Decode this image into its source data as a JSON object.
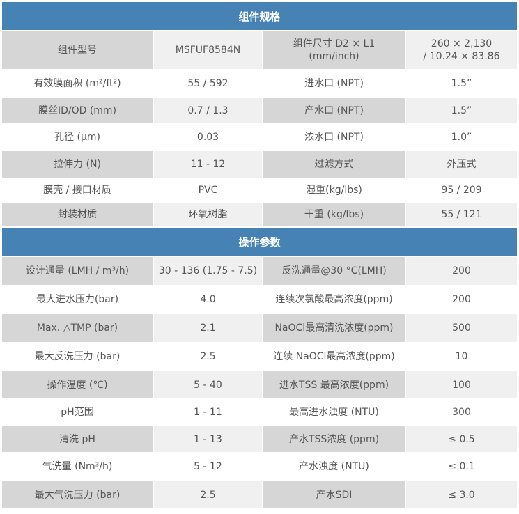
{
  "colors": {
    "header": "#4682b4",
    "label_bg": "#d6d6d6",
    "value_bg": "#f0f0f0",
    "text": "#555555"
  },
  "sections": [
    {
      "title": "组件规格",
      "rows": [
        [
          "组件型号",
          "MSFUF8584N",
          "组件尺寸 D2 × L1\n(mm/inch)",
          "260 × 2,130\n/ 10.24 × 83.86"
        ],
        [
          "有效膜面积 (m²/ft²)",
          "55 / 592",
          "进水口 (NPT)",
          "1.5”"
        ],
        [
          "膜丝ID/OD (mm)",
          "0.7 / 1.3",
          "产水口 (NPT)",
          "1.5”"
        ],
        [
          "孔径 (μm)",
          "0.03",
          "浓水口 (NPT)",
          "1.0”"
        ],
        [
          "拉伸力 (N)",
          "11 - 12",
          "过滤方式",
          "外压式"
        ],
        [
          "膜壳 / 接口材质",
          "PVC",
          "湿重(kg/lbs)",
          "95 / 209"
        ],
        [
          "封装材质",
          "环氧树脂",
          "干重 (kg/lbs)",
          "55 / 121"
        ]
      ]
    },
    {
      "title": "操作参数",
      "rows": [
        [
          "设计通量 (LMH / m³/h)",
          "30 - 136 (1.75 - 7.5)",
          "反洗通量@30 °C(LMH)",
          "200"
        ],
        [
          "最大进水压力(bar)",
          "4.0",
          "连续次氯酸最高浓度(ppm)",
          "200"
        ],
        [
          "Max. △TMP (bar)",
          "2.1",
          "NaOCl最高清洗浓度(ppm)",
          "500"
        ],
        [
          "最大反洗压力 (bar)",
          "2.5",
          "连续 NaOCl最高浓度(ppm)",
          "10"
        ],
        [
          "操作温度 (℃)",
          "5 - 40",
          "进水TSS 最高浓度(ppm)",
          "100"
        ],
        [
          "pH范围",
          "1 - 11",
          "最高进水浊度 (NTU)",
          "300"
        ],
        [
          "清洗 pH",
          "1 - 13",
          "产水TSS浓度 (ppm)",
          "≤ 0.5"
        ],
        [
          "气洗量 (Nm³/h)",
          "5 - 12",
          "产水浊度 (NTU)",
          "≤ 0.1"
        ],
        [
          "最大气洗压力 (bar)",
          "2.5",
          "产水SDI",
          "≤ 3.0"
        ]
      ]
    }
  ]
}
